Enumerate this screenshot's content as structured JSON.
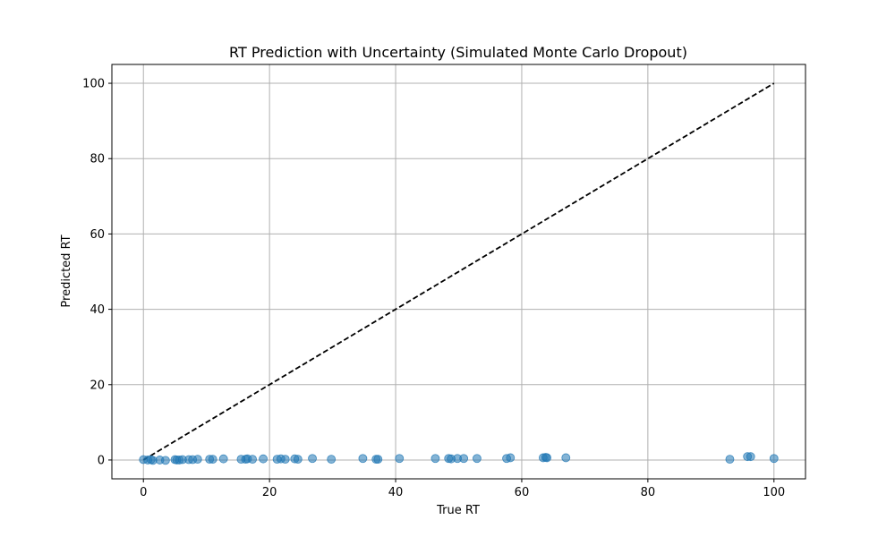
{
  "chart_data": {
    "type": "scatter",
    "title": "RT Prediction with Uncertainty (Simulated Monte Carlo Dropout)",
    "xlabel": "True RT",
    "ylabel": "Predicted RT",
    "xlim": [
      -5,
      105
    ],
    "ylim": [
      -5,
      105
    ],
    "xticks": [
      "0",
      "20",
      "40",
      "60",
      "80",
      "100"
    ],
    "yticks": [
      "0",
      "20",
      "40",
      "60",
      "80",
      "100"
    ],
    "grid": true,
    "point_color": "#1f77b4",
    "reference_line": {
      "style": "dashed",
      "color": "#000000",
      "from": [
        0,
        0
      ],
      "to": [
        100,
        100
      ]
    },
    "series": [
      {
        "x": [
          0.0,
          0.7,
          1.2,
          1.5,
          2.6,
          3.5,
          5.0,
          5.3,
          5.7,
          6.2,
          7.2,
          7.8,
          8.6,
          10.5,
          11.0,
          12.7,
          15.5,
          16.2,
          16.5,
          17.3,
          19.0,
          21.2,
          21.8,
          22.5,
          24.0,
          24.5,
          26.8,
          29.8,
          34.8,
          36.9,
          37.2,
          40.6,
          46.3,
          48.4,
          48.8,
          49.8,
          50.8,
          52.9,
          57.6,
          58.2,
          63.4,
          63.8,
          64.0,
          67.0,
          93.0,
          95.8,
          96.3,
          100.0
        ],
        "y": [
          0.1,
          0.0,
          0.1,
          -0.1,
          0.0,
          -0.1,
          0.1,
          0.0,
          0.0,
          0.1,
          0.1,
          0.1,
          0.2,
          0.2,
          0.2,
          0.3,
          0.2,
          0.2,
          0.3,
          0.2,
          0.3,
          0.2,
          0.3,
          0.2,
          0.3,
          0.2,
          0.4,
          0.2,
          0.4,
          0.2,
          0.2,
          0.4,
          0.4,
          0.4,
          0.3,
          0.4,
          0.4,
          0.4,
          0.4,
          0.6,
          0.6,
          0.7,
          0.6,
          0.6,
          0.2,
          0.9,
          0.9,
          0.4
        ]
      }
    ]
  }
}
